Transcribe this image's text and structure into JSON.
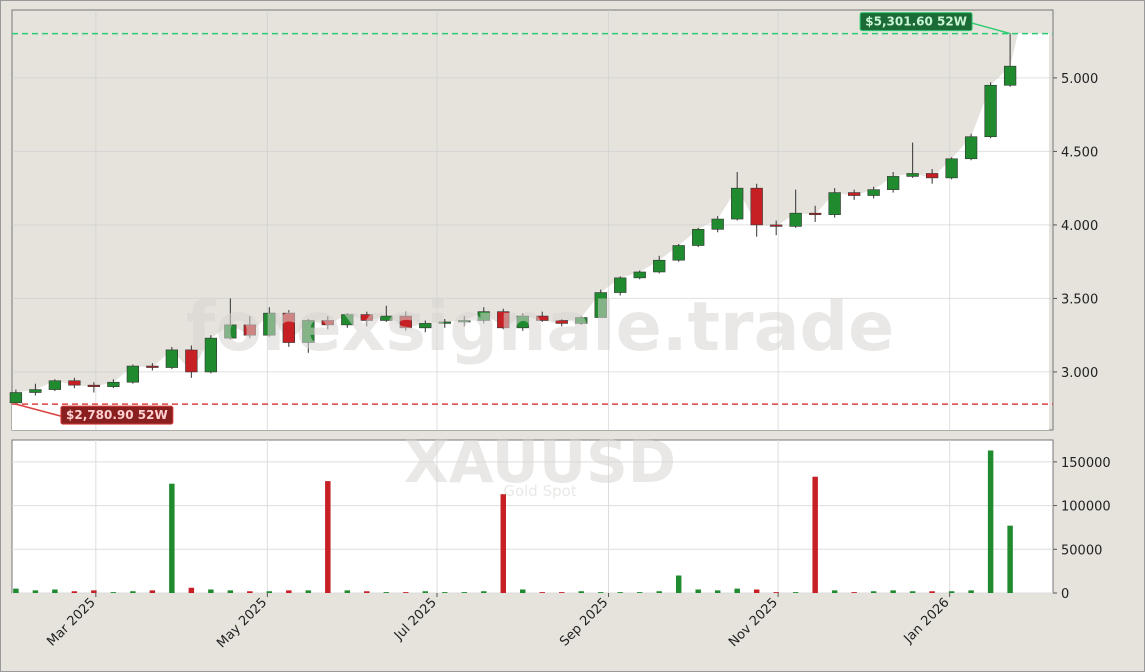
{
  "chart_data": [
    {
      "type": "candlestick",
      "watermark": "forexsignale.trade",
      "symbol": "XAUUSD",
      "symbol_name": "Gold Spot",
      "categories": [
        null,
        null,
        null,
        null,
        null,
        null,
        null,
        null,
        null,
        null,
        null,
        null,
        null,
        null,
        null,
        null,
        null,
        null,
        null,
        null,
        null,
        null,
        null,
        null,
        null,
        null,
        null,
        null,
        null,
        null,
        null,
        null,
        null,
        null,
        null,
        null,
        null,
        null,
        null,
        null,
        null,
        null,
        null,
        null,
        null,
        null,
        null,
        null,
        null,
        null,
        null,
        null
      ],
      "open": [
        2790,
        2860,
        2880,
        2940,
        2910,
        2900,
        2930,
        3040,
        3030,
        3150,
        3000,
        3230,
        3320,
        3250,
        3400,
        3200,
        3350,
        3320,
        3390,
        3350,
        3380,
        3300,
        3330,
        3340,
        3350,
        3410,
        3300,
        3380,
        3350,
        3330,
        3370,
        3540,
        3640,
        3680,
        3760,
        3860,
        3970,
        4040,
        4250,
        4000,
        3990,
        4080,
        4070,
        4220,
        4200,
        4240,
        4330,
        4350,
        4320,
        4450,
        4600,
        4950
      ],
      "high": [
        2880,
        2920,
        2950,
        2960,
        2930,
        2950,
        3050,
        3060,
        3170,
        3180,
        3250,
        3500,
        3380,
        3440,
        3420,
        3360,
        3380,
        3400,
        3410,
        3450,
        3410,
        3350,
        3360,
        3380,
        3440,
        3430,
        3400,
        3410,
        3360,
        3380,
        3560,
        3650,
        3690,
        3790,
        3870,
        3980,
        4060,
        4360,
        4280,
        4030,
        4240,
        4130,
        4250,
        4240,
        4260,
        4360,
        4560,
        4380,
        4460,
        4620,
        4970,
        5301.6
      ],
      "low": [
        2780.9,
        2840,
        2870,
        2890,
        2860,
        2890,
        2920,
        3010,
        3020,
        2960,
        2990,
        3220,
        3230,
        3240,
        3170,
        3130,
        3290,
        3300,
        3310,
        3340,
        3280,
        3270,
        3300,
        3310,
        3330,
        3290,
        3280,
        3340,
        3310,
        3320,
        3370,
        3520,
        3630,
        3670,
        3750,
        3850,
        3950,
        4030,
        3920,
        3930,
        3980,
        4020,
        4050,
        4170,
        4180,
        4220,
        4320,
        4280,
        4310,
        4440,
        4590,
        4940
      ],
      "close": [
        2860,
        2880,
        2940,
        2910,
        2900,
        2930,
        3040,
        3030,
        3150,
        3000,
        3230,
        3320,
        3250,
        3400,
        3200,
        3350,
        3320,
        3390,
        3350,
        3380,
        3300,
        3330,
        3340,
        3350,
        3410,
        3300,
        3380,
        3350,
        3330,
        3370,
        3540,
        3640,
        3680,
        3760,
        3860,
        3970,
        4040,
        4250,
        4000,
        3990,
        4080,
        4070,
        4220,
        4200,
        4240,
        4330,
        4350,
        4320,
        4450,
        4600,
        4950,
        5080
      ],
      "up_color": "#1f8a2e",
      "down_color": "#c62025",
      "xlim": [
        -0.2,
        53.2
      ],
      "xticks": [
        {
          "value": 4.1,
          "label": "Mar 2025"
        },
        {
          "value": 12.9,
          "label": "May 2025"
        },
        {
          "value": 21.6,
          "label": "Jul 2025"
        },
        {
          "value": 30.4,
          "label": "Sep 2025"
        },
        {
          "value": 39.1,
          "label": "Nov 2025"
        },
        {
          "value": 47.9,
          "label": "Jan 2026"
        }
      ],
      "ylim": [
        2605,
        5462
      ],
      "yticks": [
        {
          "value": 3000,
          "label": "3.000"
        },
        {
          "value": 3500,
          "label": "3.500"
        },
        {
          "value": 4000,
          "label": "4.000"
        },
        {
          "value": 4500,
          "label": "4.500"
        },
        {
          "value": 5000,
          "label": "5.000"
        }
      ],
      "grid": true,
      "annotations": [
        {
          "value": 5301.6,
          "label": "$5,301.60 52W",
          "color": "#2ecc71",
          "index": 51
        },
        {
          "value": 2780.9,
          "label": "$2,780.90 52W",
          "color": "#d94040",
          "index": 0
        }
      ]
    },
    {
      "type": "bar",
      "values": [
        5000,
        3000,
        4000,
        2000,
        3000,
        1000,
        2000,
        3000,
        125000,
        6000,
        4000,
        3000,
        2000,
        2000,
        3000,
        3000,
        128000,
        3000,
        2000,
        1000,
        1000,
        2000,
        1000,
        1000,
        2000,
        113000,
        4000,
        1000,
        1000,
        2000,
        1000,
        1000,
        1000,
        2000,
        20000,
        4000,
        3000,
        5000,
        4000,
        1000,
        1000,
        133000,
        3000,
        1000,
        2000,
        3000,
        2000,
        2000,
        2000,
        3000,
        163000,
        77000
      ],
      "ylim": [
        0,
        175000
      ],
      "yticks": [
        0,
        50000,
        100000,
        150000
      ],
      "grid": true
    }
  ]
}
